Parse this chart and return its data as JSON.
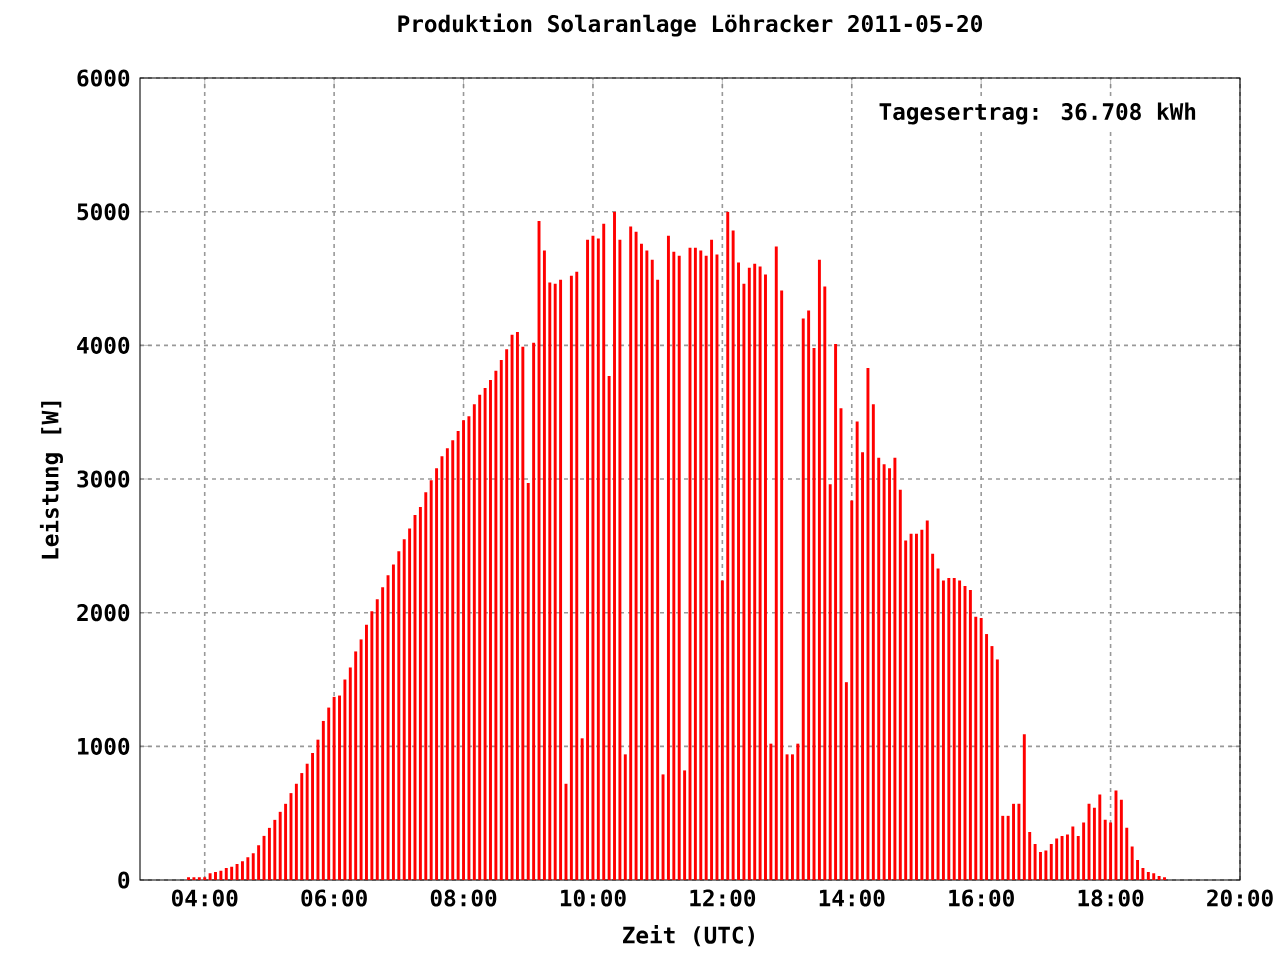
{
  "chart_data": {
    "type": "bar",
    "title": "Produktion Solaranlage Löhracker 2011-05-20",
    "xlabel": "Zeit (UTC)",
    "ylabel": "Leistung [W]",
    "annotations": [
      "Tagesertrag: 36.708 kWh"
    ],
    "x": [
      "2011-05-20T03:45",
      "2011-05-20T03:50",
      "2011-05-20T03:55",
      "2011-05-20T04:00",
      "2011-05-20T04:05",
      "2011-05-20T04:10",
      "2011-05-20T04:15",
      "2011-05-20T04:20",
      "2011-05-20T04:25",
      "2011-05-20T04:30",
      "2011-05-20T04:35",
      "2011-05-20T04:40",
      "2011-05-20T04:45",
      "2011-05-20T04:50",
      "2011-05-20T04:55",
      "2011-05-20T05:00",
      "2011-05-20T05:05",
      "2011-05-20T05:10",
      "2011-05-20T05:15",
      "2011-05-20T05:20",
      "2011-05-20T05:25",
      "2011-05-20T05:30",
      "2011-05-20T05:35",
      "2011-05-20T05:40",
      "2011-05-20T05:45",
      "2011-05-20T05:50",
      "2011-05-20T05:55",
      "2011-05-20T06:00",
      "2011-05-20T06:05",
      "2011-05-20T06:10",
      "2011-05-20T06:15",
      "2011-05-20T06:20",
      "2011-05-20T06:25",
      "2011-05-20T06:30",
      "2011-05-20T06:35",
      "2011-05-20T06:40",
      "2011-05-20T06:45",
      "2011-05-20T06:50",
      "2011-05-20T06:55",
      "2011-05-20T07:00",
      "2011-05-20T07:05",
      "2011-05-20T07:10",
      "2011-05-20T07:15",
      "2011-05-20T07:20",
      "2011-05-20T07:25",
      "2011-05-20T07:30",
      "2011-05-20T07:35",
      "2011-05-20T07:40",
      "2011-05-20T07:45",
      "2011-05-20T07:50",
      "2011-05-20T07:55",
      "2011-05-20T08:00",
      "2011-05-20T08:05",
      "2011-05-20T08:10",
      "2011-05-20T08:15",
      "2011-05-20T08:20",
      "2011-05-20T08:25",
      "2011-05-20T08:30",
      "2011-05-20T08:35",
      "2011-05-20T08:40",
      "2011-05-20T08:45",
      "2011-05-20T08:50",
      "2011-05-20T08:55",
      "2011-05-20T09:00",
      "2011-05-20T09:05",
      "2011-05-20T09:10",
      "2011-05-20T09:15",
      "2011-05-20T09:20",
      "2011-05-20T09:25",
      "2011-05-20T09:30",
      "2011-05-20T09:35",
      "2011-05-20T09:40",
      "2011-05-20T09:45",
      "2011-05-20T09:50",
      "2011-05-20T09:55",
      "2011-05-20T10:00",
      "2011-05-20T10:05",
      "2011-05-20T10:10",
      "2011-05-20T10:15",
      "2011-05-20T10:20",
      "2011-05-20T10:25",
      "2011-05-20T10:30",
      "2011-05-20T10:35",
      "2011-05-20T10:40",
      "2011-05-20T10:45",
      "2011-05-20T10:50",
      "2011-05-20T10:55",
      "2011-05-20T11:00",
      "2011-05-20T11:05",
      "2011-05-20T11:10",
      "2011-05-20T11:15",
      "2011-05-20T11:20",
      "2011-05-20T11:25",
      "2011-05-20T11:30",
      "2011-05-20T11:35",
      "2011-05-20T11:40",
      "2011-05-20T11:45",
      "2011-05-20T11:50",
      "2011-05-20T11:55",
      "2011-05-20T12:00",
      "2011-05-20T12:05",
      "2011-05-20T12:10",
      "2011-05-20T12:15",
      "2011-05-20T12:20",
      "2011-05-20T12:25",
      "2011-05-20T12:30",
      "2011-05-20T12:35",
      "2011-05-20T12:40",
      "2011-05-20T12:45",
      "2011-05-20T12:50",
      "2011-05-20T12:55",
      "2011-05-20T13:00",
      "2011-05-20T13:05",
      "2011-05-20T13:10",
      "2011-05-20T13:15",
      "2011-05-20T13:20",
      "2011-05-20T13:25",
      "2011-05-20T13:30",
      "2011-05-20T13:35",
      "2011-05-20T13:40",
      "2011-05-20T13:45",
      "2011-05-20T13:50",
      "2011-05-20T13:55",
      "2011-05-20T14:00",
      "2011-05-20T14:05",
      "2011-05-20T14:10",
      "2011-05-20T14:15",
      "2011-05-20T14:20",
      "2011-05-20T14:25",
      "2011-05-20T14:30",
      "2011-05-20T14:35",
      "2011-05-20T14:40",
      "2011-05-20T14:45",
      "2011-05-20T14:50",
      "2011-05-20T14:55",
      "2011-05-20T15:00",
      "2011-05-20T15:05",
      "2011-05-20T15:10",
      "2011-05-20T15:15",
      "2011-05-20T15:20",
      "2011-05-20T15:25",
      "2011-05-20T15:30",
      "2011-05-20T15:35",
      "2011-05-20T15:40",
      "2011-05-20T15:45",
      "2011-05-20T15:50",
      "2011-05-20T15:55",
      "2011-05-20T16:00",
      "2011-05-20T16:05",
      "2011-05-20T16:10",
      "2011-05-20T16:15",
      "2011-05-20T16:20",
      "2011-05-20T16:25",
      "2011-05-20T16:30",
      "2011-05-20T16:35",
      "2011-05-20T16:40",
      "2011-05-20T16:45",
      "2011-05-20T16:50",
      "2011-05-20T16:55",
      "2011-05-20T17:00",
      "2011-05-20T17:05",
      "2011-05-20T17:10",
      "2011-05-20T17:15",
      "2011-05-20T17:20",
      "2011-05-20T17:25",
      "2011-05-20T17:30",
      "2011-05-20T17:35",
      "2011-05-20T17:40",
      "2011-05-20T17:45",
      "2011-05-20T17:50",
      "2011-05-20T17:55",
      "2011-05-20T18:00",
      "2011-05-20T18:05",
      "2011-05-20T18:10",
      "2011-05-20T18:15",
      "2011-05-20T18:20",
      "2011-05-20T18:25",
      "2011-05-20T18:30",
      "2011-05-20T18:35",
      "2011-05-20T18:40",
      "2011-05-20T18:45",
      "2011-05-20T18:50"
    ],
    "values": [
      20,
      20,
      20,
      20,
      50,
      60,
      70,
      90,
      100,
      120,
      140,
      170,
      200,
      260,
      330,
      390,
      450,
      510,
      570,
      650,
      720,
      800,
      870,
      950,
      1050,
      1190,
      1290,
      1370,
      1380,
      1500,
      1590,
      1710,
      1800,
      1910,
      2010,
      2100,
      2190,
      2280,
      2360,
      2460,
      2550,
      2630,
      2730,
      2790,
      2900,
      2990,
      3080,
      3170,
      3230,
      3290,
      3360,
      3440,
      3470,
      3560,
      3630,
      3680,
      3740,
      3810,
      3890,
      3970,
      4080,
      4100,
      3990,
      2970,
      4020,
      4930,
      4710,
      4470,
      4460,
      4490,
      720,
      4520,
      4550,
      1060,
      4790,
      4820,
      4800,
      4910,
      3770,
      5000,
      4790,
      940,
      4890,
      4850,
      4760,
      4710,
      4640,
      4490,
      790,
      4820,
      4700,
      4670,
      820,
      4730,
      4730,
      4710,
      4670,
      4790,
      4680,
      2240,
      5000,
      4860,
      4620,
      4460,
      4580,
      4610,
      4590,
      4530,
      1020,
      4740,
      4410,
      940,
      940,
      1020,
      4200,
      4260,
      3980,
      4640,
      4440,
      2960,
      4010,
      3530,
      1480,
      2840,
      3430,
      3200,
      3830,
      3560,
      3160,
      3110,
      3080,
      3160,
      2920,
      2540,
      2590,
      2590,
      2620,
      2690,
      2440,
      2330,
      2240,
      2260,
      2260,
      2240,
      2200,
      2170,
      1970,
      1960,
      1840,
      1750,
      1650,
      480,
      480,
      570,
      570,
      1090,
      360,
      270,
      210,
      220,
      270,
      310,
      330,
      340,
      400,
      330,
      430,
      570,
      540,
      640,
      450,
      430,
      670,
      600,
      390,
      250,
      150,
      90,
      60,
      50,
      30,
      20
    ],
    "color": "#ff0000",
    "xlim": [
      "2011-05-20T03:00",
      "2011-05-20T20:00"
    ],
    "xticks": [
      {
        "value": "2011-05-20T04:00",
        "label": "04:00"
      },
      {
        "value": "2011-05-20T06:00",
        "label": "06:00"
      },
      {
        "value": "2011-05-20T08:00",
        "label": "08:00"
      },
      {
        "value": "2011-05-20T10:00",
        "label": "10:00"
      },
      {
        "value": "2011-05-20T12:00",
        "label": "12:00"
      },
      {
        "value": "2011-05-20T14:00",
        "label": "14:00"
      },
      {
        "value": "2011-05-20T16:00",
        "label": "16:00"
      },
      {
        "value": "2011-05-20T18:00",
        "label": "18:00"
      },
      {
        "value": "2011-05-20T20:00",
        "label": "20:00"
      }
    ],
    "ylim": [
      0,
      6000
    ],
    "yticks": [
      0,
      1000,
      2000,
      3000,
      4000,
      5000,
      6000
    ],
    "grid": true
  }
}
